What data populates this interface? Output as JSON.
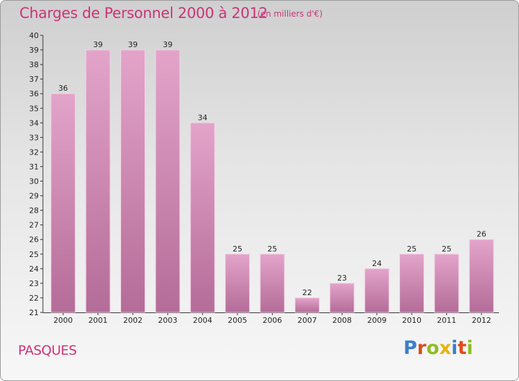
{
  "header": {
    "title": "Charges de Personnel 2000 à 2012",
    "subtitle": "(en milliers d'€)"
  },
  "footer": {
    "town": "PASQUES",
    "logo": [
      "P",
      "r",
      "o",
      "x",
      "i",
      "t",
      "i"
    ],
    "logo_colors": [
      "#3a7fc8",
      "#e04a1a",
      "#8fbc23",
      "#e8b410",
      "#3a7fc8",
      "#e04a1a",
      "#8fbc23"
    ]
  },
  "colors": {
    "accent": "#cc3377",
    "bar_top": "#e3a4ca",
    "bar_bottom": "#b46c98",
    "bar_edge": "#f3d2e4"
  },
  "chart_data": {
    "type": "bar",
    "title": "Charges de Personnel 2000 à 2012",
    "subtitle": "(en milliers d'€)",
    "xlabel": "",
    "ylabel": "",
    "categories": [
      "2000",
      "2001",
      "2002",
      "2003",
      "2004",
      "2005",
      "2006",
      "2007",
      "2008",
      "2009",
      "2010",
      "2011",
      "2012"
    ],
    "values": [
      36,
      39,
      39,
      39,
      34,
      25,
      25,
      22,
      23,
      24,
      25,
      25,
      26
    ],
    "ylim": [
      21,
      40
    ],
    "yticks": [
      21,
      22,
      23,
      24,
      25,
      26,
      27,
      28,
      29,
      30,
      31,
      32,
      33,
      34,
      35,
      36,
      37,
      38,
      39,
      40
    ],
    "data_labels": true,
    "grid": false,
    "legend": "none"
  }
}
